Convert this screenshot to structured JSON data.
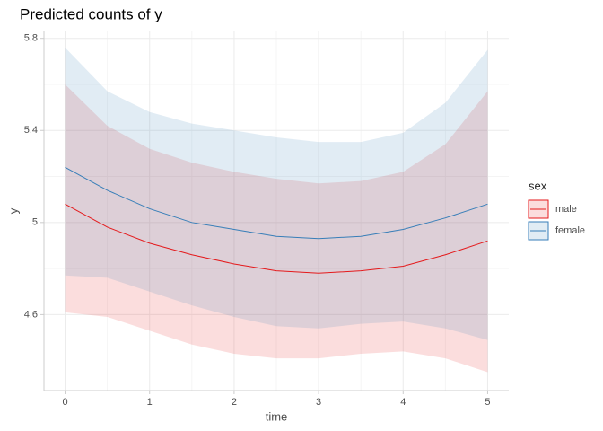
{
  "chart_data": {
    "type": "ribbon-line",
    "title": "Predicted counts of y",
    "x_label": "time",
    "y_label": "y",
    "x": [
      0,
      0.5,
      1,
      1.5,
      2,
      2.5,
      3,
      3.5,
      4,
      4.5,
      5
    ],
    "series": [
      {
        "name": "male",
        "color": "#e41a1c",
        "values": [
          5.08,
          4.98,
          4.91,
          4.86,
          4.82,
          4.79,
          4.78,
          4.79,
          4.81,
          4.86,
          4.92
        ],
        "upper": [
          5.6,
          5.42,
          5.32,
          5.26,
          5.22,
          5.19,
          5.17,
          5.18,
          5.22,
          5.34,
          5.57
        ],
        "lower": [
          4.61,
          4.59,
          4.53,
          4.47,
          4.43,
          4.41,
          4.41,
          4.43,
          4.44,
          4.41,
          4.35
        ]
      },
      {
        "name": "female",
        "color": "#377eb8",
        "values": [
          5.24,
          5.14,
          5.06,
          5.0,
          4.97,
          4.94,
          4.93,
          4.94,
          4.97,
          5.02,
          5.08
        ],
        "upper": [
          5.76,
          5.57,
          5.48,
          5.43,
          5.4,
          5.37,
          5.35,
          5.35,
          5.39,
          5.52,
          5.75
        ],
        "lower": [
          4.77,
          4.76,
          4.7,
          4.64,
          4.59,
          4.55,
          4.54,
          4.56,
          4.57,
          4.54,
          4.49
        ]
      }
    ],
    "legend_title": "sex",
    "legend": "right",
    "xlim": [
      -0.25,
      5.25
    ],
    "xticks": [
      0,
      1,
      2,
      3,
      4,
      5
    ],
    "ylim": [
      4.27,
      5.83
    ],
    "yticks": [
      4.6,
      5.0,
      5.4,
      5.8
    ],
    "grid": true
  }
}
